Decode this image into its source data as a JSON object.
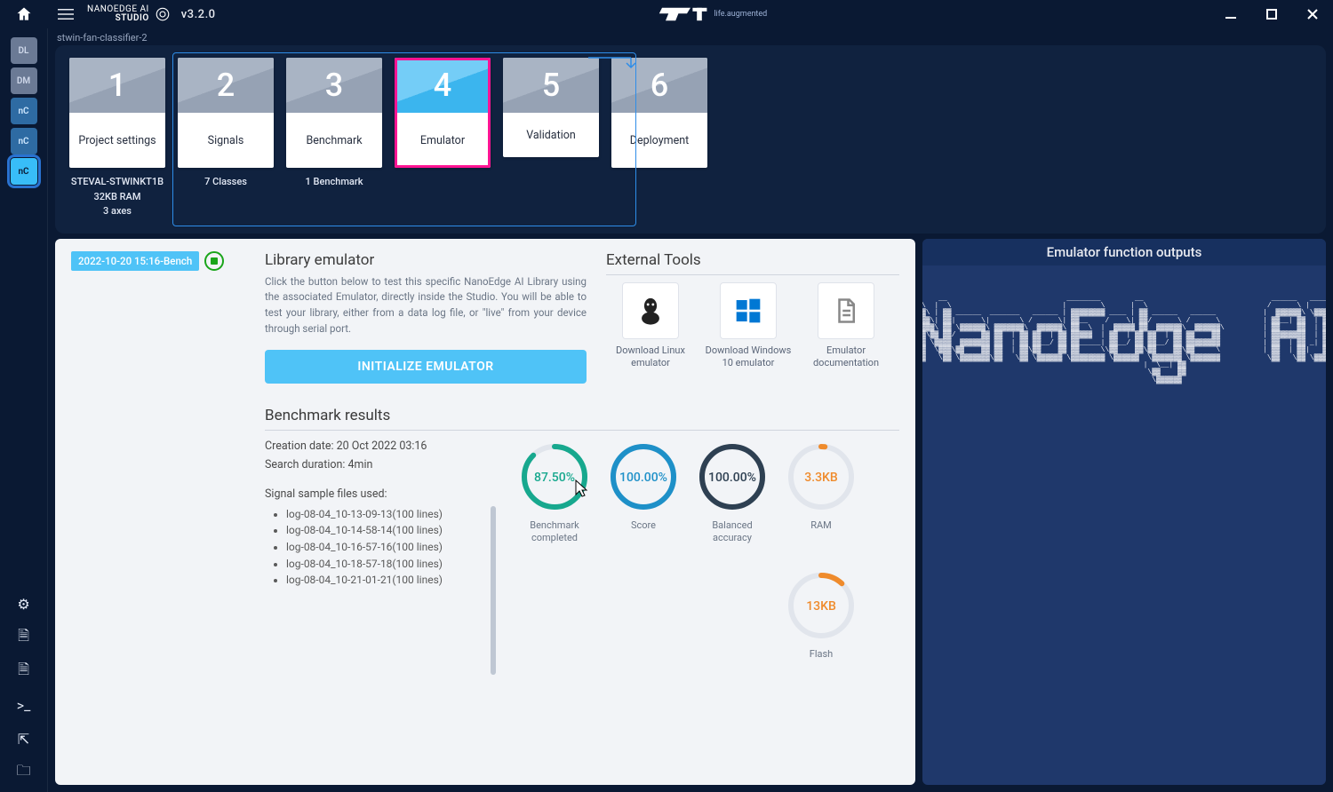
{
  "title": {
    "brand1": "NANOEDGE AI",
    "brand2": "STUDIO",
    "version": "v3.2.0",
    "st_tag": "life.augmented"
  },
  "crumb": "stwin-fan-classifier-2",
  "side": {
    "items": [
      {
        "name": "dl",
        "label": "DL",
        "cls": "dl"
      },
      {
        "name": "dm",
        "label": "DM",
        "cls": "dl"
      },
      {
        "name": "nc1",
        "label": "nC",
        "cls": "nc-faded"
      },
      {
        "name": "nc2",
        "label": "nC",
        "cls": "nc-faded"
      },
      {
        "name": "nc3",
        "label": "nC",
        "cls": "nc",
        "active": true
      }
    ],
    "bottom": [
      {
        "name": "settings-icon",
        "glyph": "⚙"
      },
      {
        "name": "search-doc-icon",
        "glyph": "🗎"
      },
      {
        "name": "doc-icon",
        "glyph": "🗎"
      },
      {
        "name": "terminal-icon",
        "glyph": ">_"
      },
      {
        "name": "export-icon",
        "glyph": "⇱"
      },
      {
        "name": "folder-icon",
        "glyph": "🗀"
      }
    ]
  },
  "steps": [
    {
      "n": "1",
      "label": "Project settings",
      "sub": "STEVAL-STWINKT1B\n32KB RAM\n3 axes",
      "short": false,
      "active": false
    },
    {
      "n": "2",
      "label": "Signals",
      "sub": "7 Classes",
      "short": false,
      "active": false
    },
    {
      "n": "3",
      "label": "Benchmark",
      "sub": "1 Benchmark",
      "short": false,
      "active": false
    },
    {
      "n": "4",
      "label": "Emulator",
      "sub": "",
      "short": false,
      "active": true
    },
    {
      "n": "5",
      "label": "Validation",
      "sub": "",
      "short": true,
      "active": false
    },
    {
      "n": "6",
      "label": "Deployment",
      "sub": "",
      "short": false,
      "active": false
    }
  ],
  "bench_chip": "2022-10-20 15:16-Bench",
  "lib": {
    "title": "Library emulator",
    "desc": "Click the button below to test this specific NanoEdge AI Library using the associated Emulator, directly inside the Studio. You will be able to test your library, either from a data log file, or \"live\" from your device through serial port.",
    "button": "INITIALIZE EMULATOR"
  },
  "tools": {
    "title": "External Tools",
    "items": [
      {
        "name": "download-linux",
        "label": "Download Linux emulator",
        "icon": "linux"
      },
      {
        "name": "download-windows",
        "label": "Download Windows 10 emulator",
        "icon": "windows"
      },
      {
        "name": "emulator-docs",
        "label": "Emulator documentation",
        "icon": "doc"
      }
    ]
  },
  "bench": {
    "title": "Benchmark results",
    "creation": "Creation date: 20 Oct 2022 03:16",
    "duration": "Search duration: 4min",
    "files_title": "Signal sample files used:",
    "files": [
      "log-08-04_10-13-09-13(100 lines)",
      "log-08-04_10-14-58-14(100 lines)",
      "log-08-04_10-16-57-16(100 lines)",
      "log-08-04_10-18-57-18(100 lines)",
      "log-08-04_10-21-01-21(100 lines)"
    ],
    "gauges": [
      {
        "name": "benchmark-completed",
        "value": "87.50%",
        "label": "Benchmark completed",
        "pct": 87.5,
        "color": "#17a88e"
      },
      {
        "name": "score",
        "value": "100.00%",
        "label": "Score",
        "pct": 100,
        "color": "#1e90c8"
      },
      {
        "name": "balanced-accuracy",
        "value": "100.00%",
        "label": "Balanced accuracy",
        "pct": 100,
        "color": "#2e4052"
      },
      {
        "name": "ram",
        "value": "3.3KB",
        "label": "RAM",
        "pct": 2,
        "color": "#ef8b2c"
      },
      {
        "name": "flash",
        "value": "13KB",
        "label": "Flash",
        "pct": 12,
        "color": "#ef8b2c"
      }
    ]
  },
  "right": {
    "title": "Emulator function outputs",
    "ascii": "NanoEdge AI"
  }
}
